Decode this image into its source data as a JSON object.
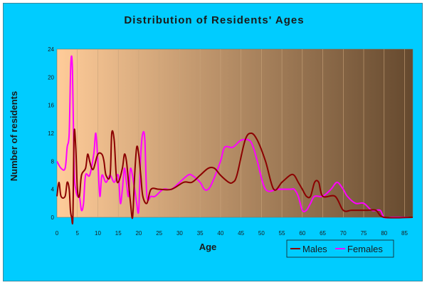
{
  "chart_data": {
    "type": "line",
    "title": "Distribution of Residents' Ages",
    "xlabel": "Age",
    "ylabel": "Number of residents",
    "xlim": [
      0,
      87
    ],
    "ylim": [
      0,
      24
    ],
    "x_ticks": [
      "0",
      "5",
      "10",
      "15",
      "20",
      "25",
      "30",
      "35",
      "40",
      "45",
      "50",
      "55",
      "60",
      "65",
      "70",
      "75",
      "80",
      "85"
    ],
    "y_ticks": [
      "0",
      "4",
      "8",
      "12",
      "16",
      "20",
      "24"
    ],
    "grid": "vertical",
    "legend_position": "bottom-right",
    "colors": {
      "frame_background": "#00ccff",
      "plot_left": "#ffcc99",
      "plot_right": "#65492e",
      "grid": "#c9a47a",
      "males": "#8b0000",
      "females": "#ff00ff"
    },
    "series": [
      {
        "name": "Males",
        "color": "#8b0000",
        "points": [
          [
            0,
            3
          ],
          [
            0.5,
            5
          ],
          [
            1,
            3
          ],
          [
            2,
            3
          ],
          [
            2.5,
            5
          ],
          [
            3,
            4
          ],
          [
            3.3,
            1
          ],
          [
            3.6,
            0
          ],
          [
            3.9,
            0
          ],
          [
            4.2,
            12
          ],
          [
            4.6,
            10
          ],
          [
            5,
            4
          ],
          [
            5.5,
            3
          ],
          [
            6,
            6
          ],
          [
            7,
            7
          ],
          [
            7.5,
            9
          ],
          [
            8,
            8
          ],
          [
            8.5,
            7
          ],
          [
            9,
            7
          ],
          [
            10,
            9
          ],
          [
            11,
            9
          ],
          [
            11.5,
            8
          ],
          [
            12,
            6
          ],
          [
            13,
            6
          ],
          [
            13.4,
            12
          ],
          [
            14,
            11
          ],
          [
            14.5,
            6
          ],
          [
            15,
            5
          ],
          [
            16,
            7
          ],
          [
            16.5,
            9
          ],
          [
            17,
            8
          ],
          [
            17.5,
            5
          ],
          [
            18,
            2
          ],
          [
            18.5,
            0
          ],
          [
            19,
            6
          ],
          [
            19.5,
            10
          ],
          [
            20,
            9
          ],
          [
            20.5,
            6
          ],
          [
            21,
            3
          ],
          [
            22,
            2
          ],
          [
            23,
            4
          ],
          [
            25,
            4
          ],
          [
            28,
            4
          ],
          [
            31,
            5
          ],
          [
            33,
            5
          ],
          [
            35,
            6
          ],
          [
            37,
            7
          ],
          [
            38.5,
            7
          ],
          [
            40,
            6
          ],
          [
            42,
            5
          ],
          [
            43,
            5
          ],
          [
            44,
            6
          ],
          [
            46,
            11
          ],
          [
            47.5,
            12
          ],
          [
            49,
            11
          ],
          [
            51,
            8
          ],
          [
            53,
            4
          ],
          [
            55,
            5
          ],
          [
            57,
            6
          ],
          [
            58,
            6
          ],
          [
            59,
            5
          ],
          [
            60,
            4
          ],
          [
            61,
            3
          ],
          [
            62,
            3
          ],
          [
            63,
            5
          ],
          [
            64,
            5
          ],
          [
            65,
            3
          ],
          [
            68,
            3
          ],
          [
            70,
            1
          ],
          [
            72,
            1
          ],
          [
            74,
            1
          ],
          [
            76,
            1
          ],
          [
            78,
            1
          ],
          [
            80,
            0
          ],
          [
            87,
            0
          ]
        ]
      },
      {
        "name": "Females",
        "color": "#ff00ff",
        "points": [
          [
            0,
            8
          ],
          [
            1,
            7
          ],
          [
            2,
            7
          ],
          [
            2.5,
            10
          ],
          [
            3,
            12
          ],
          [
            3.4,
            22
          ],
          [
            3.8,
            21
          ],
          [
            4.2,
            7
          ],
          [
            4.6,
            4
          ],
          [
            5,
            3
          ],
          [
            5.5,
            3
          ],
          [
            6,
            1
          ],
          [
            6.5,
            2
          ],
          [
            7,
            6
          ],
          [
            8,
            6
          ],
          [
            9,
            9
          ],
          [
            9.5,
            12
          ],
          [
            10,
            8
          ],
          [
            10.5,
            3
          ],
          [
            11,
            6
          ],
          [
            12,
            5
          ],
          [
            13,
            6
          ],
          [
            14,
            5
          ],
          [
            15,
            6
          ],
          [
            15.5,
            2
          ],
          [
            16,
            4
          ],
          [
            16.5,
            7
          ],
          [
            17,
            5
          ],
          [
            17.5,
            3
          ],
          [
            18,
            7
          ],
          [
            19,
            4
          ],
          [
            19.5,
            2
          ],
          [
            20,
            1
          ],
          [
            20.5,
            9
          ],
          [
            21,
            12
          ],
          [
            21.5,
            11
          ],
          [
            22,
            3
          ],
          [
            23,
            3
          ],
          [
            24,
            3
          ],
          [
            26,
            4
          ],
          [
            28,
            4
          ],
          [
            30,
            5
          ],
          [
            32,
            6
          ],
          [
            33,
            6
          ],
          [
            35,
            5
          ],
          [
            36,
            4
          ],
          [
            37,
            4
          ],
          [
            38,
            5
          ],
          [
            40,
            8
          ],
          [
            41,
            10
          ],
          [
            43,
            10
          ],
          [
            45,
            11
          ],
          [
            47,
            11
          ],
          [
            48,
            10
          ],
          [
            49,
            8
          ],
          [
            51,
            4
          ],
          [
            54,
            4
          ],
          [
            57,
            4
          ],
          [
            58,
            4
          ],
          [
            59,
            3
          ],
          [
            60,
            1
          ],
          [
            61,
            1
          ],
          [
            62,
            2
          ],
          [
            63,
            3
          ],
          [
            65,
            3
          ],
          [
            67,
            4
          ],
          [
            68.5,
            5
          ],
          [
            70,
            4
          ],
          [
            71,
            3
          ],
          [
            73,
            2
          ],
          [
            75,
            2
          ],
          [
            77,
            1
          ],
          [
            79,
            1
          ],
          [
            80,
            0
          ],
          [
            82,
            0
          ],
          [
            86,
            0
          ]
        ]
      }
    ]
  }
}
